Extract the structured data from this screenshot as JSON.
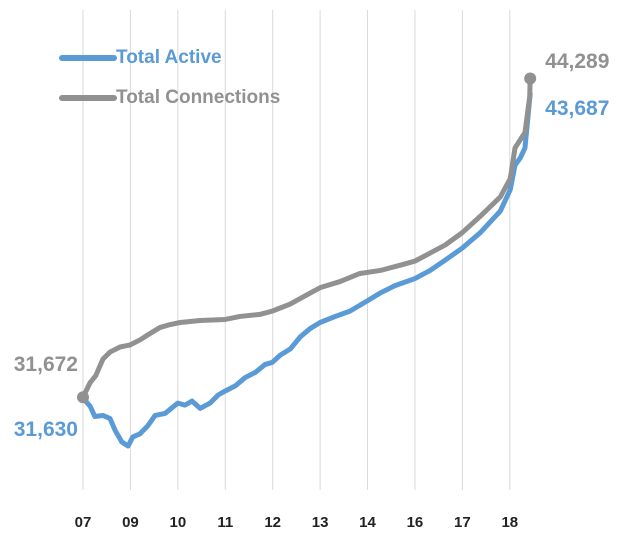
{
  "chart_data": {
    "type": "line",
    "xticks": [
      {
        "value": 0,
        "label": "07"
      },
      {
        "value": 1,
        "label": "09"
      },
      {
        "value": 2,
        "label": "10"
      },
      {
        "value": 3,
        "label": "11"
      },
      {
        "value": 4,
        "label": "12"
      },
      {
        "value": 5,
        "label": "13"
      },
      {
        "value": 6,
        "label": "14"
      },
      {
        "value": 7,
        "label": "16"
      },
      {
        "value": 8,
        "label": "17"
      },
      {
        "value": 9,
        "label": "18"
      }
    ],
    "xlim": [
      -1.75,
      11.83
    ],
    "ylim": [
      28000,
      47000
    ],
    "grid": true,
    "legend": "top-left",
    "series": [
      {
        "name": "Total Active",
        "color": "#5b9bd5",
        "marker": false,
        "x": [
          0,
          0.15,
          0.25,
          0.42,
          0.57,
          0.68,
          0.82,
          0.95,
          1.05,
          1.2,
          1.37,
          1.52,
          1.73,
          2.0,
          2.15,
          2.3,
          2.47,
          2.68,
          2.85,
          3.0,
          3.21,
          3.42,
          3.63,
          3.84,
          3.99,
          4.16,
          4.37,
          4.58,
          4.79,
          5.0,
          5.32,
          5.63,
          5.99,
          6.27,
          6.58,
          7.0,
          7.32,
          7.64,
          8.0,
          8.38,
          8.8,
          9.01,
          9.11,
          9.22,
          9.32,
          9.43
        ],
        "values": [
          31630,
          31320,
          30910,
          30950,
          30830,
          30350,
          29900,
          29740,
          30100,
          30220,
          30550,
          30950,
          31030,
          31440,
          31360,
          31520,
          31230,
          31440,
          31760,
          31920,
          32120,
          32450,
          32650,
          32970,
          33050,
          33340,
          33580,
          34060,
          34390,
          34630,
          34870,
          35080,
          35480,
          35800,
          36090,
          36370,
          36690,
          37100,
          37580,
          38190,
          39040,
          39890,
          40860,
          41140,
          41540,
          43687
        ],
        "value_labels": [
          "31,630",
          null,
          null,
          null,
          null,
          null,
          null,
          null,
          null,
          null,
          null,
          null,
          null,
          null,
          null,
          null,
          null,
          null,
          null,
          null,
          null,
          null,
          null,
          null,
          null,
          null,
          null,
          null,
          null,
          null,
          null,
          null,
          null,
          null,
          null,
          null,
          null,
          null,
          null,
          null,
          null,
          null,
          null,
          null,
          null,
          "43,687"
        ]
      },
      {
        "name": "Total Connections",
        "color": "#919191",
        "marker": true,
        "x": [
          0,
          0.15,
          0.27,
          0.42,
          0.57,
          0.78,
          0.99,
          1.2,
          1.41,
          1.62,
          1.84,
          2.05,
          2.47,
          3.0,
          3.31,
          3.73,
          3.99,
          4.37,
          4.68,
          5.0,
          5.42,
          5.84,
          6.27,
          6.69,
          7.0,
          7.32,
          7.64,
          8.0,
          8.38,
          8.8,
          9.01,
          9.11,
          9.32,
          9.42,
          9.43
        ],
        "values": [
          31672,
          32250,
          32530,
          33180,
          33460,
          33660,
          33740,
          33940,
          34190,
          34430,
          34550,
          34630,
          34710,
          34750,
          34870,
          34950,
          35080,
          35360,
          35680,
          36010,
          36250,
          36570,
          36690,
          36900,
          37060,
          37380,
          37700,
          38190,
          38840,
          39600,
          40330,
          41540,
          42150,
          43570,
          44289
        ],
        "value_labels": [
          "31,672",
          null,
          null,
          null,
          null,
          null,
          null,
          null,
          null,
          null,
          null,
          null,
          null,
          null,
          null,
          null,
          null,
          null,
          null,
          null,
          null,
          null,
          null,
          null,
          null,
          null,
          null,
          null,
          null,
          null,
          null,
          null,
          null,
          null,
          "44,289"
        ]
      }
    ]
  }
}
